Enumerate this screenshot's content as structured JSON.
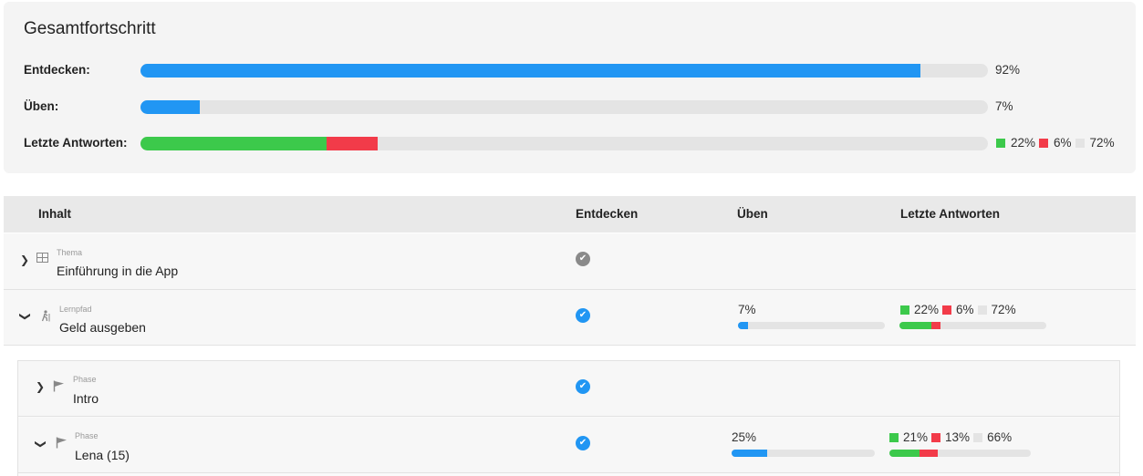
{
  "overall": {
    "title": "Gesamtfortschritt",
    "rows": [
      {
        "label": "Entdecken:",
        "percent": 92,
        "percent_text": "92%"
      },
      {
        "label": "Üben:",
        "percent": 7,
        "percent_text": "7%"
      },
      {
        "label": "Letzte Antworten:",
        "correct": 22,
        "wrong": 6,
        "open": 72,
        "correct_text": "22%",
        "wrong_text": "6%",
        "open_text": "72%"
      }
    ]
  },
  "colors": {
    "blue": "#2196f3",
    "green": "#3cc94b",
    "red": "#f23b49",
    "gray": "#e4e4e4"
  },
  "table": {
    "headers": {
      "content": "Inhalt",
      "discover": "Entdecken",
      "practice": "Üben",
      "answers": "Letzte Antworten"
    },
    "rows": [
      {
        "type": "Thema",
        "name": "Einführung in die App",
        "expanded": false,
        "icon": "grid-icon",
        "discover": "done-gray"
      },
      {
        "type": "Lernpfad",
        "name": "Geld ausgeben",
        "expanded": true,
        "icon": "hiker-icon",
        "discover": "done-blue",
        "practice": 7,
        "practice_text": "7%",
        "correct": 22,
        "wrong": 6,
        "open": 72,
        "correct_text": "22%",
        "wrong_text": "6%",
        "open_text": "72%"
      },
      {
        "type": "Phase",
        "name": "Intro",
        "expanded": false,
        "icon": "flag-icon",
        "discover": "done-blue"
      },
      {
        "type": "Phase",
        "name": "Lena (15)",
        "expanded": true,
        "icon": "flag-icon",
        "discover": "done-blue",
        "practice": 25,
        "practice_text": "25%",
        "correct": 21,
        "wrong": 13,
        "open": 66,
        "correct_text": "21%",
        "wrong_text": "13%",
        "open_text": "66%"
      }
    ]
  }
}
